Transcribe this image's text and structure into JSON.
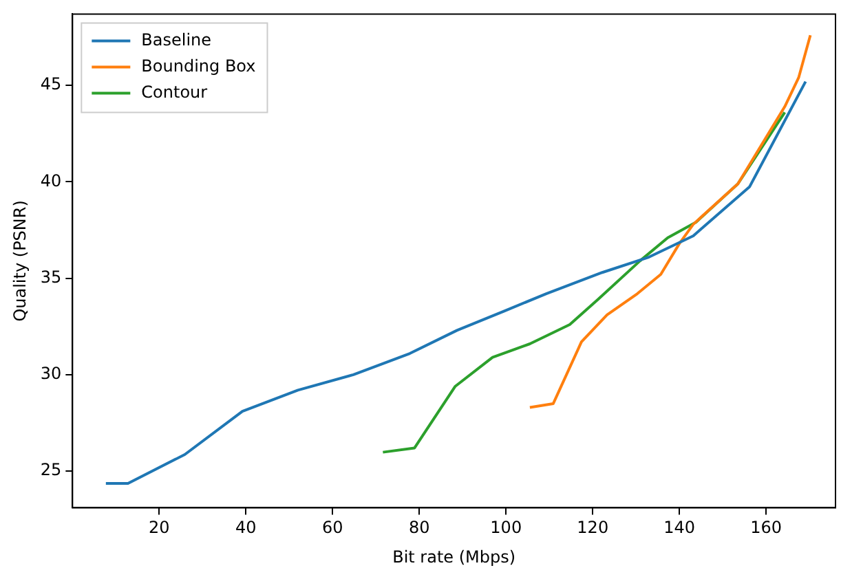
{
  "chart_data": {
    "type": "line",
    "xlabel": "Bit rate (Mbps)",
    "ylabel": "Quality (PSNR)",
    "xlim": [
      0,
      176
    ],
    "xticks": [
      20,
      40,
      60,
      80,
      100,
      120,
      140,
      160
    ],
    "ylim": [
      23.1,
      48.7
    ],
    "yticks": [
      25,
      30,
      35,
      40,
      45
    ],
    "legend": "top left",
    "grid": false,
    "marker": "none",
    "series": [
      {
        "name": "Baseline",
        "color": "#1f77b4",
        "x": [
          7.7,
          12.8,
          25.9,
          39.2,
          52,
          64.8,
          77.8,
          88.7,
          99.6,
          109.3,
          122.2,
          133,
          143.2,
          156.2,
          169.1
        ],
        "values": [
          24.36,
          24.36,
          25.86,
          28.1,
          29.2,
          30,
          31.1,
          32.3,
          33.3,
          34.2,
          35.3,
          36.1,
          37.2,
          39.75,
          45.2
        ]
      },
      {
        "name": "Bounding Box",
        "color": "#ff7f0e",
        "x": [
          105.5,
          110.9,
          117.4,
          123.3,
          130.3,
          135.7,
          140,
          143.2,
          153.5,
          164.3,
          167.5,
          170.2
        ],
        "values": [
          28.3,
          28.5,
          31.7,
          33.1,
          34.2,
          35.2,
          36.8,
          37.8,
          39.9,
          43.9,
          45.4,
          47.6
        ]
      },
      {
        "name": "Contour",
        "color": "#2ca02c",
        "x": [
          71.6,
          78.9,
          88.3,
          96.9,
          105.5,
          114.7,
          121.2,
          130.9,
          137.3,
          143.8,
          153.5,
          164.3
        ],
        "values": [
          25.98,
          26.2,
          29.4,
          30.9,
          31.6,
          32.6,
          33.9,
          35.9,
          37.1,
          37.9,
          39.9,
          43.6
        ]
      }
    ]
  }
}
